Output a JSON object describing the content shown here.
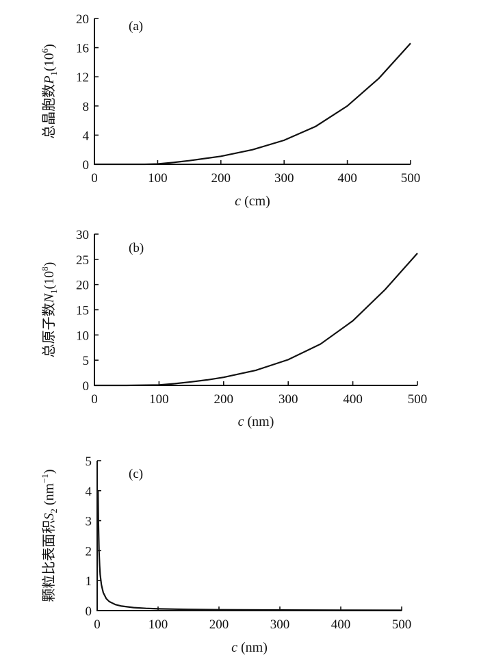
{
  "chart_data": [
    {
      "panel": "(a)",
      "type": "line",
      "ylabel_text": "总晶胞数",
      "ylabel_var": "P",
      "ylabel_sub": "1",
      "ylabel_unit": "(10",
      "ylabel_exp": "6",
      "ylabel_close": ")",
      "xlabel_var": "c",
      "xlabel_unit": " (cm)",
      "xlim": [
        0,
        500
      ],
      "ylim": [
        0,
        20
      ],
      "xticks": [
        "0",
        "100",
        "200",
        "300",
        "400",
        "500"
      ],
      "yticks": [
        "0",
        "4",
        "8",
        "12",
        "16",
        "20"
      ],
      "x": [
        0,
        50,
        80,
        100,
        125,
        150,
        175,
        200,
        250,
        300,
        350,
        400,
        450,
        500
      ],
      "y": [
        0,
        0,
        0,
        0.05,
        0.25,
        0.5,
        0.8,
        1.1,
        2.0,
        3.3,
        5.2,
        8.0,
        11.8,
        16.6
      ]
    },
    {
      "panel": "(b)",
      "type": "line",
      "ylabel_text": "总原子数",
      "ylabel_var": "N",
      "ylabel_sub": "1",
      "ylabel_unit": "(10",
      "ylabel_exp": "8",
      "ylabel_close": ")",
      "xlabel_var": "c",
      "xlabel_unit": " (nm)",
      "xlim": [
        0,
        500
      ],
      "ylim": [
        0,
        30
      ],
      "xticks": [
        "0",
        "100",
        "200",
        "300",
        "400",
        "500"
      ],
      "yticks": [
        "0",
        "5",
        "10",
        "15",
        "20",
        "25",
        "30"
      ],
      "x": [
        0,
        50,
        100,
        125,
        150,
        175,
        200,
        250,
        300,
        350,
        400,
        450,
        500
      ],
      "y": [
        0,
        0,
        0.1,
        0.35,
        0.7,
        1.1,
        1.6,
        3.0,
        5.1,
        8.2,
        12.8,
        19.0,
        26.2
      ]
    },
    {
      "panel": "(c)",
      "type": "line",
      "ylabel_text": "颗粒比表面积",
      "ylabel_var": "S",
      "ylabel_sub": "2",
      "ylabel_unit": " (nm",
      "ylabel_exp": "−1",
      "ylabel_close": ")",
      "xlabel_var": "c",
      "xlabel_unit": " (nm)",
      "xlim": [
        0,
        500
      ],
      "ylim": [
        0,
        5
      ],
      "xticks": [
        "0",
        "100",
        "200",
        "300",
        "400",
        "500"
      ],
      "yticks": [
        "0",
        "1",
        "2",
        "3",
        "4",
        "5"
      ],
      "x": [
        1.5,
        2,
        3,
        4,
        5,
        7,
        10,
        15,
        20,
        30,
        40,
        60,
        80,
        100,
        150,
        200,
        300,
        400,
        500
      ],
      "y": [
        4.0,
        3.0,
        2.0,
        1.5,
        1.2,
        0.86,
        0.6,
        0.4,
        0.3,
        0.2,
        0.15,
        0.1,
        0.075,
        0.06,
        0.04,
        0.03,
        0.02,
        0.015,
        0.012
      ]
    }
  ]
}
